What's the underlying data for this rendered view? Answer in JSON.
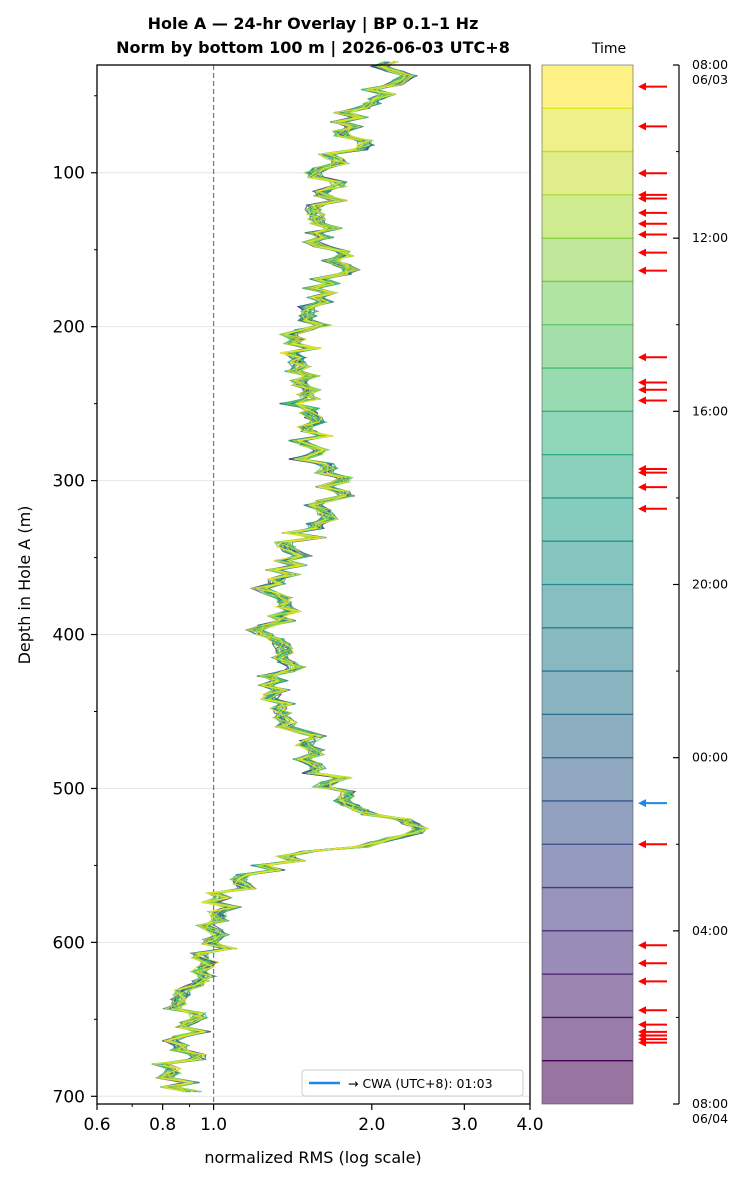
{
  "title_line1": "Hole A — 24-hr Overlay  |  BP 0.1–1 Hz",
  "title_line2": "Norm by bottom 100 m  |  2026-06-03 UTC+8",
  "colorbar_title": "Time",
  "colors": {
    "event_arrow": "#ff0000",
    "cwa_arrow": "#1e88e5",
    "reference_line": "#777777"
  },
  "chart_data": {
    "type": "line",
    "xlabel": "normalized RMS  (log scale)",
    "ylabel": "Depth in Hole A (m)",
    "x_scale": "log",
    "xlim": [
      0.6,
      4.0
    ],
    "ylim": [
      705,
      30
    ],
    "x_ticks": [
      "0.6",
      "0.8",
      "1.0",
      "2.0",
      "3.0",
      "4.0"
    ],
    "y_ticks": [
      "100",
      "200",
      "300",
      "400",
      "500",
      "600",
      "700"
    ],
    "reference_line_x": 1.0,
    "grid": "horizontal",
    "legend_position": "bottom-right",
    "legend_label": "→ CWA (UTC+8): 01:03",
    "series_count": 24,
    "colormap": "viridis",
    "profile": {
      "depth": [
        20,
        40,
        60,
        80,
        100,
        120,
        140,
        160,
        180,
        200,
        220,
        240,
        260,
        280,
        300,
        320,
        340,
        360,
        380,
        400,
        420,
        440,
        460,
        480,
        500,
        510,
        520,
        530,
        540,
        550,
        560,
        570,
        580,
        590,
        600,
        620,
        640,
        660,
        680,
        700
      ],
      "rms": [
        2.05,
        2.2,
        1.8,
        1.85,
        1.6,
        1.65,
        1.55,
        1.75,
        1.6,
        1.5,
        1.5,
        1.45,
        1.55,
        1.5,
        1.7,
        1.6,
        1.45,
        1.35,
        1.3,
        1.3,
        1.35,
        1.3,
        1.45,
        1.5,
        1.75,
        1.9,
        2.2,
        2.5,
        1.6,
        1.25,
        1.15,
        1.0,
        1.05,
        0.95,
        1.05,
        0.95,
        0.85,
        0.9,
        0.85,
        0.85
      ]
    },
    "colorbar": {
      "tick_labels": [
        "08:00\n06/03",
        "12:00",
        "16:00",
        "20:00",
        "00:00",
        "04:00",
        "08:00\n06/04"
      ],
      "segments": 24
    },
    "event_arrow_times": [
      "08:30",
      "09:25",
      "10:30",
      "11:00",
      "11:05",
      "11:25",
      "11:40",
      "11:55",
      "12:20",
      "12:45",
      "14:45",
      "15:20",
      "15:30",
      "15:45",
      "17:20",
      "17:25",
      "17:45",
      "18:15",
      "02:00",
      "04:20",
      "04:45",
      "05:10",
      "05:50",
      "06:10",
      "06:20",
      "06:25",
      "06:30",
      "06:35"
    ],
    "cwa_arrow_time": "01:03"
  }
}
